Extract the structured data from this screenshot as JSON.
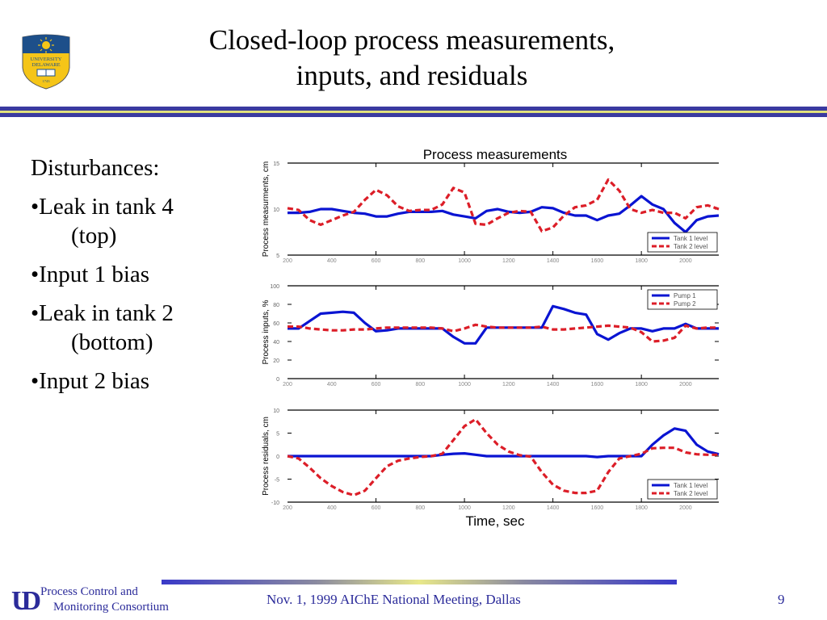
{
  "slide": {
    "title_line1": "Closed-loop process measurements,",
    "title_line2": "inputs, and residuals",
    "logo": {
      "icon": "university-of-delaware-shield-icon",
      "text": "UNIVERSITY OF DELAWARE",
      "year": "1743"
    },
    "colors": {
      "brand_blue": "#3a3aa0",
      "brand_yellow": "#f2f28a",
      "series1": "#0a14d2",
      "series2": "#dc1e28"
    }
  },
  "bullets": {
    "heading": "Disturbances:",
    "items": [
      {
        "label": "•Leak in tank 4",
        "sub": "(top)"
      },
      {
        "label": "•Input 1 bias",
        "sub": ""
      },
      {
        "label": "•Leak in tank 2",
        "sub": "(bottom)"
      },
      {
        "label": "•Input 2 bias",
        "sub": ""
      }
    ]
  },
  "footer": {
    "logo_text": "UD",
    "org_line1": "Process Control and",
    "org_line2": "Monitoring Consortium",
    "meeting": "Nov. 1, 1999 AIChE National Meeting, Dallas",
    "page": "9"
  },
  "chart_data": [
    {
      "type": "line",
      "title": "Process measurements",
      "xlabel": "",
      "ylabel": "Process measurments, cm",
      "xlim": [
        200,
        2150
      ],
      "ylim": [
        5,
        15
      ],
      "xticks": [
        200,
        400,
        600,
        800,
        1000,
        1200,
        1400,
        1600,
        1800,
        2000
      ],
      "yticks": [
        5,
        10,
        15
      ],
      "legend": "bottom-right",
      "x": [
        200,
        250,
        300,
        350,
        400,
        450,
        500,
        550,
        600,
        650,
        700,
        750,
        800,
        850,
        900,
        950,
        1000,
        1050,
        1100,
        1150,
        1200,
        1250,
        1300,
        1350,
        1400,
        1450,
        1500,
        1550,
        1600,
        1650,
        1700,
        1750,
        1800,
        1850,
        1900,
        1950,
        2000,
        2050,
        2100,
        2150
      ],
      "series": [
        {
          "name": "Tank 1 level",
          "style": "solid",
          "values": [
            9.6,
            9.6,
            9.7,
            10.0,
            10.0,
            9.8,
            9.6,
            9.5,
            9.2,
            9.2,
            9.5,
            9.7,
            9.7,
            9.7,
            9.8,
            9.4,
            9.2,
            9.0,
            9.8,
            10.0,
            9.7,
            9.6,
            9.7,
            10.2,
            10.1,
            9.6,
            9.3,
            9.3,
            8.8,
            9.3,
            9.5,
            10.4,
            11.4,
            10.5,
            10.0,
            8.5,
            7.5,
            8.8,
            9.2,
            9.3
          ]
        },
        {
          "name": "Tank 2 level",
          "style": "dashed",
          "values": [
            10.1,
            9.9,
            8.8,
            8.3,
            8.8,
            9.3,
            9.7,
            11.0,
            12.1,
            11.5,
            10.3,
            9.8,
            9.9,
            9.9,
            10.5,
            12.3,
            11.8,
            8.4,
            8.3,
            9.0,
            9.6,
            9.8,
            9.7,
            7.6,
            8.0,
            9.3,
            10.2,
            10.4,
            11.0,
            13.2,
            12.0,
            10.0,
            9.6,
            9.9,
            9.6,
            9.6,
            9.0,
            10.2,
            10.4,
            10.0
          ]
        }
      ]
    },
    {
      "type": "line",
      "title": "",
      "xlabel": "",
      "ylabel": "Process inputs, %",
      "xlim": [
        200,
        2150
      ],
      "ylim": [
        0,
        100
      ],
      "xticks": [
        200,
        400,
        600,
        800,
        1000,
        1200,
        1400,
        1600,
        1800,
        2000
      ],
      "yticks": [
        0,
        20,
        40,
        60,
        80,
        100
      ],
      "legend": "top-right",
      "x": [
        200,
        250,
        300,
        350,
        400,
        450,
        500,
        550,
        600,
        650,
        700,
        750,
        800,
        850,
        900,
        950,
        1000,
        1050,
        1100,
        1150,
        1200,
        1250,
        1300,
        1350,
        1400,
        1450,
        1500,
        1550,
        1600,
        1650,
        1700,
        1750,
        1800,
        1850,
        1900,
        1950,
        2000,
        2050,
        2100,
        2150
      ],
      "series": [
        {
          "name": "Pump 1",
          "style": "solid",
          "values": [
            54,
            54,
            62,
            70,
            71,
            72,
            71,
            60,
            51,
            52,
            54,
            54,
            54,
            54,
            54,
            45,
            38,
            38,
            55,
            55,
            55,
            55,
            55,
            55,
            78,
            75,
            71,
            69,
            48,
            42,
            49,
            54,
            54,
            51,
            54,
            54,
            59,
            54,
            54,
            54
          ]
        },
        {
          "name": "Pump 2",
          "style": "dashed",
          "values": [
            56,
            56,
            54,
            53,
            52,
            52,
            53,
            53,
            54,
            55,
            55,
            55,
            55,
            55,
            54,
            51,
            54,
            58,
            56,
            55,
            55,
            55,
            55,
            56,
            53,
            53,
            54,
            55,
            56,
            57,
            56,
            55,
            50,
            40,
            41,
            44,
            57,
            54,
            55,
            55
          ]
        }
      ]
    },
    {
      "type": "line",
      "title": "",
      "xlabel": "Time, sec",
      "ylabel": "Process residuals, cm",
      "xlim": [
        200,
        2150
      ],
      "ylim": [
        -10,
        10
      ],
      "xticks": [
        200,
        400,
        600,
        800,
        1000,
        1200,
        1400,
        1600,
        1800,
        2000
      ],
      "yticks": [
        -10,
        -5,
        0,
        5,
        10
      ],
      "legend": "bottom-right",
      "x": [
        200,
        250,
        300,
        350,
        400,
        450,
        500,
        550,
        600,
        650,
        700,
        750,
        800,
        850,
        900,
        950,
        1000,
        1050,
        1100,
        1150,
        1200,
        1250,
        1300,
        1350,
        1400,
        1450,
        1500,
        1550,
        1600,
        1650,
        1700,
        1750,
        1800,
        1850,
        1900,
        1950,
        2000,
        2050,
        2100,
        2150
      ],
      "series": [
        {
          "name": "Tank 1 level",
          "style": "solid",
          "values": [
            0,
            0,
            0,
            0,
            0,
            0,
            0,
            0,
            0,
            0,
            0,
            0,
            0,
            0,
            0.3,
            0.5,
            0.6,
            0.3,
            0,
            0,
            0,
            0,
            0,
            0,
            0,
            0,
            0,
            0,
            -0.2,
            0,
            0,
            0,
            0,
            2.5,
            4.5,
            6,
            5.5,
            2.5,
            1,
            0.4
          ]
        },
        {
          "name": "Tank 2 level",
          "style": "dashed",
          "values": [
            0,
            -0.5,
            -2.5,
            -4.8,
            -6.5,
            -7.8,
            -8.5,
            -7.5,
            -4.8,
            -2.2,
            -1,
            -0.5,
            -0.2,
            0,
            0.5,
            3.5,
            6.5,
            8,
            5,
            2.5,
            1,
            0.2,
            -0.1,
            -3.5,
            -6.2,
            -7.5,
            -8,
            -8,
            -7.5,
            -3.5,
            -0.5,
            0,
            0.5,
            1.7,
            1.8,
            1.8,
            0.8,
            0.4,
            0.3,
            0.3
          ]
        }
      ]
    }
  ]
}
